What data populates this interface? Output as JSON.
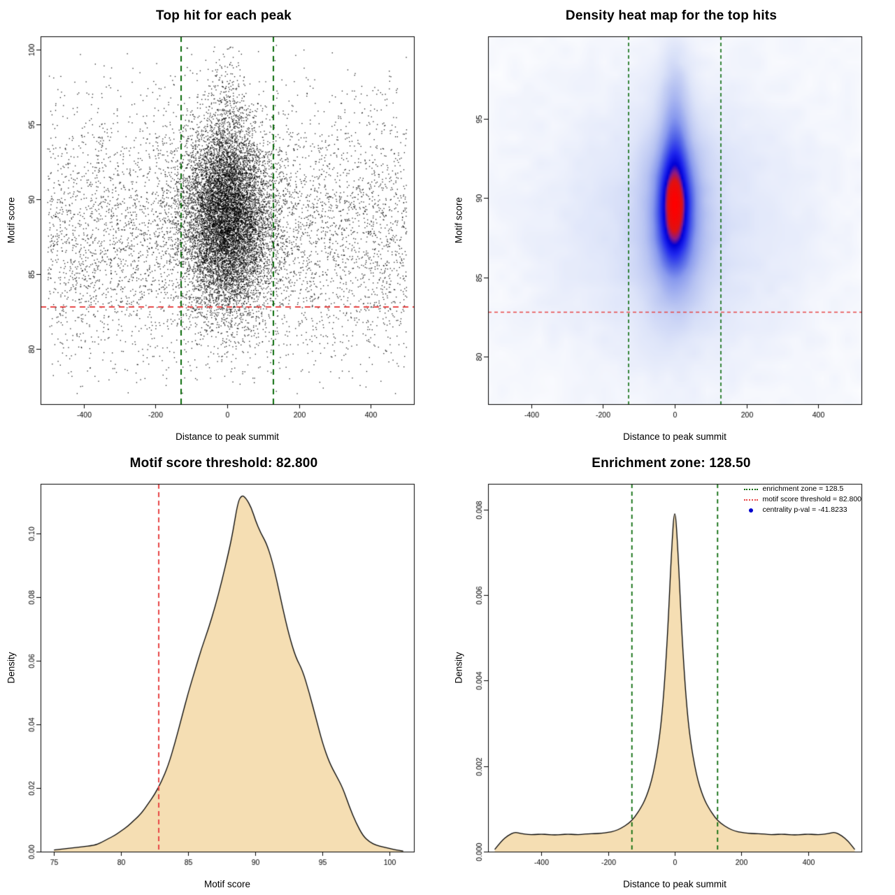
{
  "page": {
    "background": "#ffffff"
  },
  "chart_data": [
    {
      "type": "scatter",
      "title": "Top hit for each peak",
      "xlabel": "Distance to peak summit",
      "ylabel": "Motif score",
      "xlim": [
        -520,
        520
      ],
      "ylim": [
        76.3,
        100.9
      ],
      "xticks": {
        "values": [
          -400,
          -200,
          0,
          200,
          400
        ],
        "labels": [
          "-400",
          "-200",
          "0",
          "200",
          "400"
        ]
      },
      "yticks": {
        "values": [
          80,
          85,
          90,
          95,
          100
        ],
        "labels": [
          "80",
          "85",
          "90",
          "95",
          "100"
        ]
      },
      "scatter_model": {
        "seed": 20240621,
        "point_color": "#000000",
        "point_size": 1.3,
        "alpha": 0.9,
        "clusters": [
          {
            "n": 5200,
            "x_dist": "uniform",
            "x_params": [
              -500,
              500
            ],
            "y_dist": "normal",
            "y_params": [
              87.6,
              4.4
            ],
            "y_clip": [
              77,
              100.3
            ]
          },
          {
            "n": 9300,
            "x_dist": "normal",
            "x_params": [
              0,
              62
            ],
            "y_dist": "normal",
            "y_params": [
              88.7,
              3.1
            ],
            "y_clip": [
              77,
              100.3
            ]
          },
          {
            "n": 800,
            "x_dist": "normal",
            "x_params": [
              0,
              30
            ],
            "y_dist": "normal",
            "y_params": [
              92,
              4.0
            ],
            "y_clip": [
              77,
              100.3
            ]
          }
        ]
      },
      "vlines": [
        {
          "x": -128.5,
          "color": "#0a6b0a",
          "width": 2,
          "dash": [
            8,
            6
          ]
        },
        {
          "x": 128.5,
          "color": "#0a6b0a",
          "width": 2,
          "dash": [
            8,
            6
          ]
        }
      ],
      "hlines": [
        {
          "y": 82.8,
          "color": "#e84545",
          "width": 2,
          "dash": [
            8,
            6
          ]
        }
      ]
    },
    {
      "type": "heatmap",
      "title": "Density heat map for the top hits",
      "xlabel": "Distance to peak summit",
      "ylabel": "Motif score",
      "xlim": [
        -520,
        520
      ],
      "ylim": [
        77,
        100.2
      ],
      "xticks": {
        "values": [
          -400,
          -200,
          0,
          200,
          400
        ],
        "labels": [
          "-400",
          "-200",
          "0",
          "200",
          "400"
        ]
      },
      "yticks": {
        "values": [
          80,
          85,
          90,
          95
        ],
        "labels": [
          "80",
          "85",
          "90",
          "95"
        ]
      },
      "density_model": {
        "seed": 99,
        "gamma": 0.65,
        "noise_amp": 0.05,
        "components": [
          {
            "w": 1.0,
            "mx": 0,
            "my": 89.3,
            "sx": 32,
            "sy": 2.4
          },
          {
            "w": 0.62,
            "mx": 0,
            "my": 88.8,
            "sx": 58,
            "sy": 3.8
          },
          {
            "w": 0.22,
            "mx": 0,
            "my": 88.2,
            "sx": 240,
            "sy": 5.6
          },
          {
            "w": 0.45,
            "mx": 0,
            "my": 93.8,
            "sx": 26,
            "sy": 3.4
          }
        ],
        "colormap": [
          [
            0,
            "#ffffff"
          ],
          [
            0.08,
            "#f5f7fd"
          ],
          [
            0.22,
            "#dde4f9"
          ],
          [
            0.38,
            "#b7c3f2"
          ],
          [
            0.52,
            "#8a9bee"
          ],
          [
            0.64,
            "#4f61e8"
          ],
          [
            0.74,
            "#1f27ee"
          ],
          [
            0.82,
            "#0000d8"
          ],
          [
            0.87,
            "#8c1a86"
          ],
          [
            0.92,
            "#e01212"
          ],
          [
            1,
            "#ff0000"
          ]
        ]
      },
      "vlines": [
        {
          "x": -128.5,
          "color": "#0a6b0a",
          "width": 1.6,
          "dash": [
            5,
            4
          ]
        },
        {
          "x": 128.5,
          "color": "#0a6b0a",
          "width": 1.6,
          "dash": [
            5,
            4
          ]
        }
      ],
      "hlines": [
        {
          "y": 82.8,
          "color": "#e84545",
          "width": 1.4,
          "dash": [
            5,
            4
          ]
        }
      ]
    },
    {
      "type": "area",
      "title": "Motif score threshold: 82.800",
      "xlabel": "Motif score",
      "ylabel": "Density",
      "xlim": [
        74,
        101.8
      ],
      "ylim": [
        0,
        0.1155
      ],
      "xticks": {
        "values": [
          75,
          80,
          85,
          90,
          95,
          100
        ],
        "labels": [
          "75",
          "80",
          "85",
          "90",
          "95",
          "100"
        ]
      },
      "yticks": {
        "values": [
          0,
          0.02,
          0.04,
          0.06,
          0.08,
          0.1
        ],
        "labels": [
          "0.00",
          "0.02",
          "0.04",
          "0.06",
          "0.08",
          "0.10"
        ]
      },
      "fill": "#f5deb3",
      "stroke": "#000000",
      "curve": {
        "x": [
          75,
          76,
          77,
          78,
          78.5,
          79,
          79.5,
          80,
          80.5,
          81,
          81.5,
          82,
          82.5,
          83,
          83.5,
          84,
          84.5,
          85,
          85.5,
          86,
          86.5,
          87,
          87.5,
          88,
          88.3,
          88.7,
          89,
          89.3,
          89.7,
          90,
          90.4,
          90.8,
          91.2,
          91.6,
          92,
          92.5,
          93,
          93.5,
          94,
          94.5,
          95,
          95.5,
          96,
          96.5,
          97,
          97.5,
          98,
          98.5,
          99,
          99.5,
          100,
          100.5,
          101
        ],
        "y": [
          0.0005,
          0.001,
          0.0015,
          0.002,
          0.0028,
          0.004,
          0.005,
          0.0065,
          0.008,
          0.01,
          0.012,
          0.015,
          0.018,
          0.022,
          0.027,
          0.034,
          0.042,
          0.05,
          0.057,
          0.064,
          0.07,
          0.077,
          0.085,
          0.094,
          0.1,
          0.11,
          0.112,
          0.111,
          0.108,
          0.104,
          0.1,
          0.097,
          0.092,
          0.085,
          0.077,
          0.068,
          0.061,
          0.057,
          0.05,
          0.042,
          0.034,
          0.028,
          0.024,
          0.02,
          0.014,
          0.009,
          0.005,
          0.003,
          0.002,
          0.0015,
          0.001,
          0.0005,
          0.0002
        ]
      },
      "vlines": [
        {
          "x": 82.8,
          "color": "#e84545",
          "width": 2,
          "dash": [
            7,
            5
          ]
        }
      ],
      "hlines": []
    },
    {
      "type": "area",
      "title": "Enrichment zone: 128.50",
      "xlabel": "Distance to peak summit",
      "ylabel": "Density",
      "xlim": [
        -560,
        560
      ],
      "ylim": [
        0,
        0.0086
      ],
      "xticks": {
        "values": [
          -400,
          -200,
          0,
          200,
          400
        ],
        "labels": [
          "-400",
          "-200",
          "0",
          "200",
          "400"
        ]
      },
      "yticks": {
        "values": [
          0,
          0.002,
          0.004,
          0.006,
          0.008
        ],
        "labels": [
          "0.000",
          "0.002",
          "0.004",
          "0.006",
          "0.008"
        ]
      },
      "fill": "#f5deb3",
      "stroke": "#000000",
      "curve": {
        "x": [
          -540,
          -520,
          -500,
          -480,
          -460,
          -440,
          -420,
          -400,
          -380,
          -360,
          -340,
          -320,
          -300,
          -280,
          -260,
          -240,
          -220,
          -200,
          -180,
          -160,
          -140,
          -120,
          -100,
          -90,
          -80,
          -70,
          -60,
          -50,
          -40,
          -30,
          -20,
          -10,
          0,
          10,
          20,
          30,
          40,
          50,
          60,
          70,
          80,
          90,
          100,
          120,
          140,
          160,
          180,
          200,
          220,
          240,
          260,
          280,
          300,
          320,
          340,
          360,
          380,
          400,
          420,
          440,
          460,
          480,
          500,
          520,
          540
        ],
        "y": [
          5e-05,
          0.00025,
          0.00038,
          0.00046,
          0.00042,
          0.0004,
          0.0004,
          0.00041,
          0.0004,
          0.00039,
          0.0004,
          0.00041,
          0.0004,
          0.0004,
          0.00042,
          0.00042,
          0.00043,
          0.00045,
          0.00048,
          0.00055,
          0.00065,
          0.0008,
          0.00105,
          0.0012,
          0.0014,
          0.00165,
          0.002,
          0.00245,
          0.00305,
          0.004,
          0.0053,
          0.007,
          0.0082,
          0.007,
          0.0053,
          0.004,
          0.00305,
          0.00245,
          0.002,
          0.00165,
          0.0014,
          0.0012,
          0.00105,
          0.0008,
          0.00065,
          0.00055,
          0.00048,
          0.00045,
          0.00043,
          0.00042,
          0.00042,
          0.0004,
          0.0004,
          0.00041,
          0.0004,
          0.00039,
          0.0004,
          0.00041,
          0.0004,
          0.0004,
          0.00042,
          0.00046,
          0.00038,
          0.00025,
          5e-05
        ]
      },
      "vlines": [
        {
          "x": -128.5,
          "color": "#0a6b0a",
          "width": 1.8,
          "dash": [
            6,
            5
          ]
        },
        {
          "x": 128.5,
          "color": "#0a6b0a",
          "width": 1.8,
          "dash": [
            6,
            5
          ]
        }
      ],
      "hlines": [],
      "legend": {
        "entries": [
          {
            "label": "enrichment zone = 128.5",
            "color": "#0a6b0a",
            "marker": "line"
          },
          {
            "label": "motif score threshold = 82.800",
            "color": "#e84545",
            "marker": "line"
          },
          {
            "label": "centrality p-val = -41.8233",
            "color": "#0000cd",
            "marker": "dot"
          }
        ]
      }
    }
  ]
}
